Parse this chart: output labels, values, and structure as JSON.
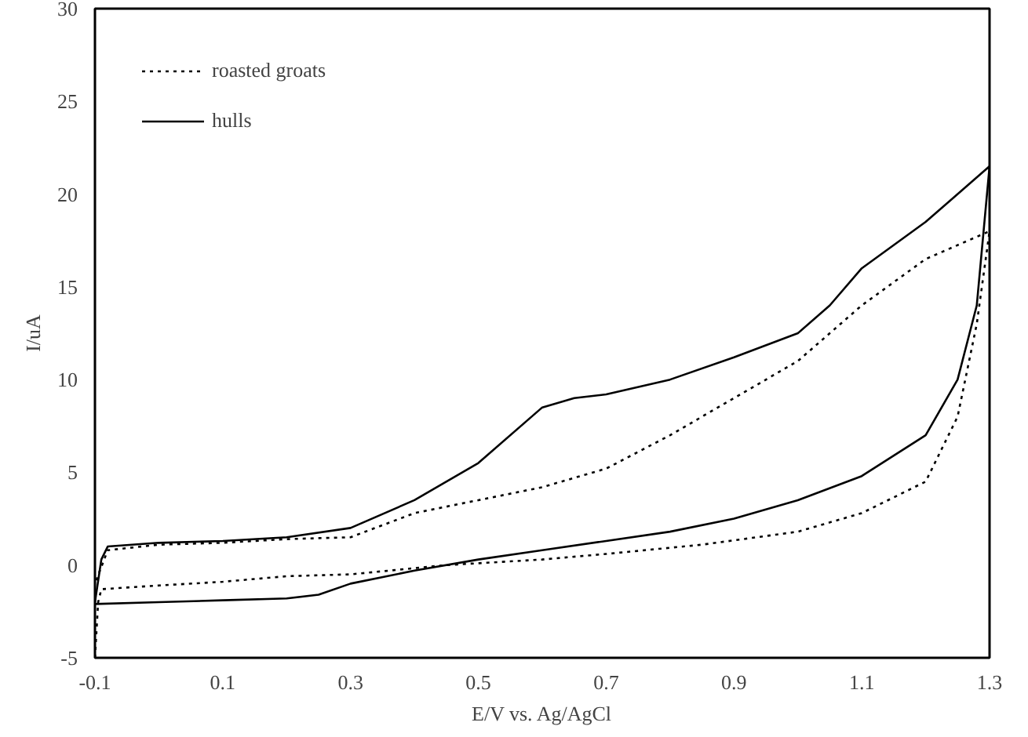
{
  "chart_data": {
    "type": "line",
    "xlabel": "E/V vs. Ag/AgCl",
    "ylabel": "I/uA",
    "xlim": [
      -0.1,
      1.3
    ],
    "ylim": [
      -5,
      30
    ],
    "xticks": [
      -0.1,
      0.1,
      0.3,
      0.5,
      0.7,
      0.9,
      1.1,
      1.3
    ],
    "yticks": [
      -5,
      0,
      5,
      10,
      15,
      20,
      25,
      30
    ],
    "grid": false,
    "legend": "top left",
    "marker": "none",
    "series": [
      {
        "name": "roasted groats",
        "color": "#000000",
        "line_style": "dotted",
        "x": [
          -0.1,
          -0.095,
          -0.09,
          0.0,
          0.1,
          0.2,
          0.3,
          0.45,
          0.6,
          0.7,
          0.85,
          1.0,
          1.1,
          1.2,
          1.25,
          1.28,
          1.3,
          1.2,
          1.1,
          1.0,
          0.9,
          0.8,
          0.7,
          0.6,
          0.5,
          0.4,
          0.3,
          0.2,
          0.1,
          0.0,
          -0.08,
          -0.1
        ],
        "values": [
          -5,
          -2,
          -1.3,
          -1.1,
          -0.9,
          -0.6,
          -0.5,
          0,
          0.3,
          0.6,
          1.1,
          1.8,
          2.8,
          4.5,
          8,
          13,
          18,
          16.5,
          14,
          11,
          9,
          7,
          5.2,
          4.2,
          3.5,
          2.8,
          1.5,
          1.4,
          1.2,
          1.1,
          0.8,
          -1
        ]
      },
      {
        "name": "hulls",
        "color": "#000000",
        "line_style": "solid",
        "x": [
          -0.1,
          -0.09,
          -0.08,
          0.0,
          0.1,
          0.2,
          0.3,
          0.4,
          0.5,
          0.6,
          0.65,
          0.7,
          0.8,
          0.9,
          1.0,
          1.05,
          1.1,
          1.2,
          1.3,
          1.28,
          1.25,
          1.2,
          1.1,
          1.0,
          0.9,
          0.8,
          0.7,
          0.6,
          0.5,
          0.4,
          0.3,
          0.25,
          0.2,
          0.1,
          0.0,
          -0.1
        ],
        "values": [
          -2,
          0.3,
          1,
          1.2,
          1.3,
          1.5,
          2,
          3.5,
          5.5,
          8.5,
          9,
          9.2,
          10,
          11.2,
          12.5,
          14,
          16,
          18.5,
          21.5,
          14,
          10,
          7,
          4.8,
          3.5,
          2.5,
          1.8,
          1.3,
          0.8,
          0.3,
          -0.3,
          -1,
          -1.6,
          -1.8,
          -1.9,
          -2,
          -2.1
        ]
      }
    ]
  }
}
